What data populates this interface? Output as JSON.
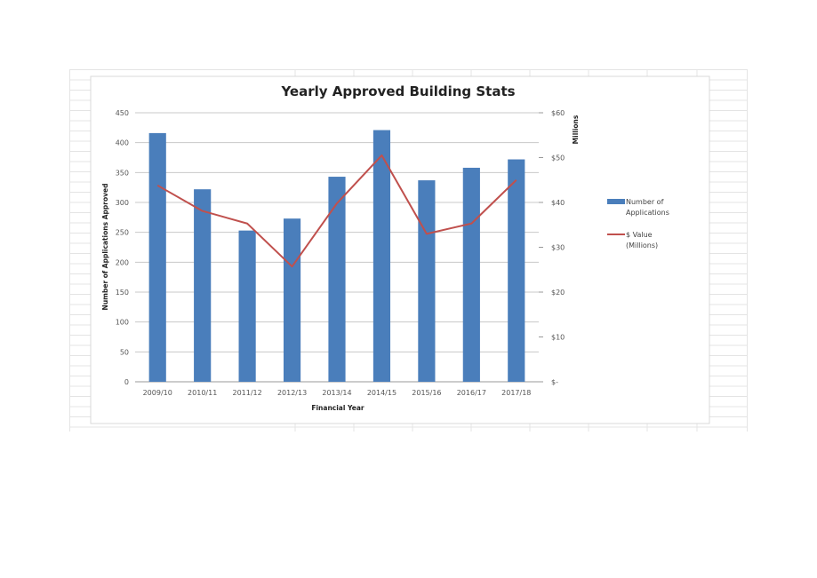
{
  "chart_data": {
    "type": "bar",
    "title": "Yearly Approved Building Stats",
    "xlabel": "Financial Year",
    "ylabel": "Number of Applications Approved",
    "y2label": "Millions",
    "categories": [
      "2009/10",
      "2010/11",
      "2011/12",
      "2012/13",
      "2013/14",
      "2014/15",
      "2015/16",
      "2016/17",
      "2017/18"
    ],
    "ylim": [
      0,
      450
    ],
    "y2lim": [
      0,
      60
    ],
    "yticks": [
      "0",
      "50",
      "100",
      "150",
      "200",
      "250",
      "300",
      "350",
      "400",
      "450"
    ],
    "y2ticks": [
      "$-",
      "$10",
      "$20",
      "$30",
      "$40",
      "$50",
      "$60"
    ],
    "grid": true,
    "legend_position": "right",
    "series": [
      {
        "name": "Number of Applications",
        "name_lines": [
          "Number of",
          "Applications"
        ],
        "type": "bar",
        "axis": "left",
        "color": "#4a7ebb",
        "values": [
          416,
          322,
          253,
          273,
          343,
          421,
          337,
          358,
          372
        ]
      },
      {
        "name": "$ Value (Millions)",
        "name_lines": [
          "$ Value",
          "(Millions)"
        ],
        "type": "line",
        "axis": "right",
        "color": "#c0504d",
        "values": [
          43.8,
          38.1,
          35.3,
          25.7,
          39.8,
          50.5,
          33,
          35.3,
          45
        ]
      }
    ]
  }
}
